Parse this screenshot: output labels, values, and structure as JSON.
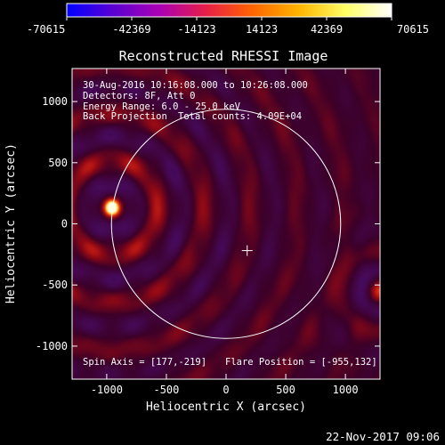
{
  "chart_data": {
    "type": "heatmap",
    "title": "Reconstructed RHESSI Image",
    "xlabel": "Heliocentric X (arcsec)",
    "ylabel": "Heliocentric Y (arcsec)",
    "xlim": [
      -1290,
      1290
    ],
    "ylim": [
      -1270,
      1270
    ],
    "xticks": [
      -1000,
      -500,
      0,
      500,
      1000
    ],
    "yticks": [
      -1000,
      -500,
      0,
      500,
      1000
    ],
    "colorbar": {
      "range": [
        -70615,
        70615
      ],
      "ticks": [
        -70615,
        -42369,
        -14123,
        14123,
        42369,
        70615
      ],
      "colors": [
        "#0000ff",
        "#5a00d2",
        "#aa00b4",
        "#e81e48",
        "#ff6400",
        "#ffb400",
        "#ffff64",
        "#ffffff"
      ]
    },
    "annotations": {
      "time_range": "30-Aug-2016 10:16:08.000 to 10:26:08.000",
      "detectors": "Detectors: 8F, Att 0",
      "energy_range": "Energy Range: 6.0 - 25.0 keV",
      "method": "Back Projection",
      "total_counts": "Total counts: 4.09E+04",
      "spin_axis": "Spin Axis = [177,-219]",
      "flare_position": "Flare Position = [-955,132]"
    },
    "spin_axis": [
      177,
      -219
    ],
    "flare_position": [
      -955,
      132
    ],
    "solar_radius_arcsec": 960
  },
  "footer": {
    "date": "22-Nov-2017 09:06"
  }
}
